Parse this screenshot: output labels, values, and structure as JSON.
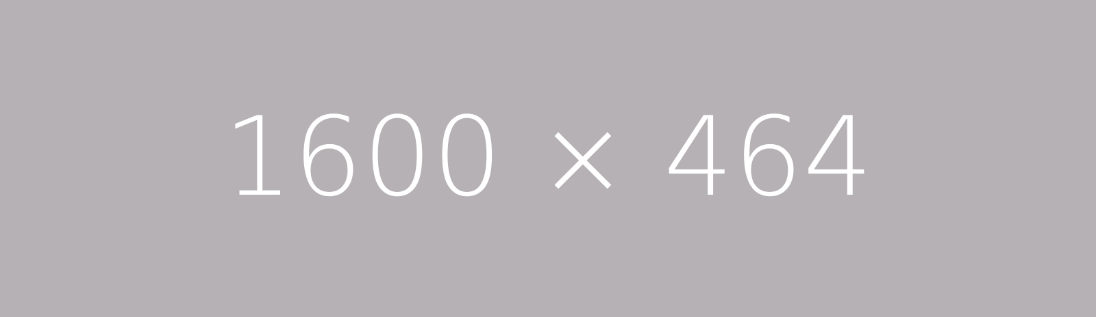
{
  "placeholder": {
    "text": "1600 × 464",
    "background_color": "#b5b1b4",
    "text_color": "#ffffff"
  }
}
